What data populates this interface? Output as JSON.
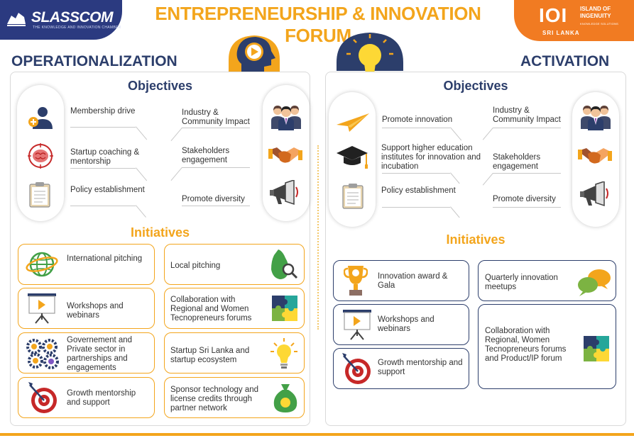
{
  "header": {
    "brand_name": "SLASSCOM",
    "brand_tagline": "THE KNOWLEDGE AND INNOVATION CHAMBER",
    "title": "ENTREPRENEURSHIP & INNOVATION FORUM",
    "partner_mark": "IOI",
    "partner_line1": "ISLAND OF",
    "partner_line2": "INGENUITY",
    "partner_tagline": "KNOWLEDGE SOLUTIONS",
    "partner_country": "SRI LANKA"
  },
  "colors": {
    "navy": "#2c3e6b",
    "orange": "#f3a51c",
    "partner_orange": "#f17b22",
    "brand_blue": "#2b3a80"
  },
  "operationalization": {
    "heading": "OPERATIONALIZATION",
    "objectives_title": "Objectives",
    "objectives_left": [
      {
        "text": "Membership drive",
        "icon": "add-person-icon"
      },
      {
        "text": "Startup coaching & mentorship",
        "icon": "brain-target-icon"
      },
      {
        "text": "Policy establishment",
        "icon": "clipboard-icon"
      }
    ],
    "objectives_right": [
      {
        "text": "Industry & Community Impact",
        "icon": "business-people-icon"
      },
      {
        "text": "Stakeholders engagement",
        "icon": "handshake-icon"
      },
      {
        "text": "Promote diversity",
        "icon": "megaphone-icon"
      }
    ],
    "initiatives_title": "Initiatives",
    "initiatives_left": [
      {
        "text": "International pitching",
        "icon": "globe-icon"
      },
      {
        "text": "Workshops and webinars",
        "icon": "presentation-board-icon"
      },
      {
        "text": "Governement and Private sector in partnerships and engagements",
        "icon": "gears-people-icon"
      },
      {
        "text": "Growth mentorship and support",
        "icon": "target-icon"
      }
    ],
    "initiatives_right": [
      {
        "text": "Local pitching",
        "icon": "sri-lanka-map-icon"
      },
      {
        "text": "Collaboration with Regional and Women Tecnopreneurs forums",
        "icon": "puzzle-icon"
      },
      {
        "text": "Startup Sri Lanka and startup ecosystem",
        "icon": "lightbulb-icon"
      },
      {
        "text": "Sponsor technology and license credits through partner network",
        "icon": "money-bag-icon"
      }
    ]
  },
  "activation": {
    "heading": "ACTIVATION",
    "objectives_title": "Objectives",
    "objectives_left": [
      {
        "text": "Promote innovation",
        "icon": "paper-plane-icon"
      },
      {
        "text": "Support higher education institutes for innovation and incubation",
        "icon": "graduation-cap-icon"
      },
      {
        "text": "Policy establishment",
        "icon": "clipboard-icon"
      }
    ],
    "objectives_right": [
      {
        "text": "Industry & Community Impact",
        "icon": "business-people-icon"
      },
      {
        "text": "Stakeholders engagement",
        "icon": "handshake-icon"
      },
      {
        "text": "Promote diversity",
        "icon": "megaphone-icon"
      }
    ],
    "initiatives_title": "Initiatives",
    "initiatives_left": [
      {
        "text": "Innovation award & Gala",
        "icon": "trophy-icon"
      },
      {
        "text": "Workshops and webinars",
        "icon": "presentation-board-icon"
      },
      {
        "text": "Growth mentorship and support",
        "icon": "target-icon"
      }
    ],
    "initiatives_right": [
      {
        "text": "Quarterly innovation meetups",
        "icon": "chat-bubbles-icon"
      },
      {
        "text": "Collaboration with Regional, Women Tecnopreneurs forums and Product/IP forum",
        "icon": "puzzle-icon"
      }
    ]
  }
}
